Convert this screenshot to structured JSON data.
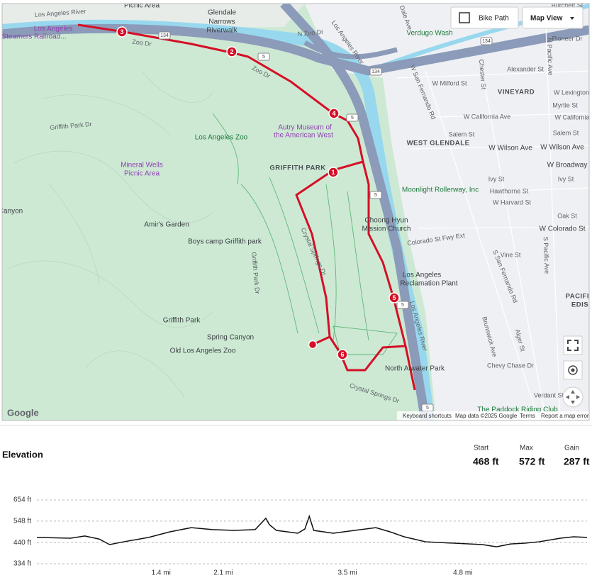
{
  "map": {
    "labels": [
      "Los Angeles River",
      "Los Angeles",
      "Steamers Railroad...",
      "Picnic Area",
      "Glendale",
      "Narrows",
      "Riverwalk",
      "Zoo Dr",
      "Zoo Dr",
      "N Zoo Dr",
      "Griffith Park Dr",
      "Los Angeles Zoo",
      "Autry Museum of",
      "the American West",
      "GRIFFITH PARK",
      "Mineral Wells",
      "Picnic Area",
      "Canyon",
      "Amir's Garden",
      "Boys camp Griffith park",
      "Crystal Springs Dr",
      "Griffith Park Dr",
      "Griffith Park",
      "Spring Canyon",
      "Old Los Angeles Zoo",
      "Crystal Springs Dr",
      "North Atwater Park",
      "The Paddock Riding Club",
      "Los Angeles",
      "Reclamation Plant",
      "Choong Hyun",
      "Mission Church",
      "Colorado St Fwy Ext",
      "Moonlight Rollerway, Inc",
      "WEST GLENDALE",
      "VINEYARD",
      "W Wilson Ave",
      "W Wilson Ave",
      "W Broadway",
      "Ivy St",
      "Ivy St",
      "Hawthorne St",
      "W Harvard St",
      "Oak St",
      "W Colorado St",
      "Vine St",
      "Alexander St",
      "W Milford St",
      "W California Ave",
      "Salem St",
      "Salem St",
      "Myrtle St",
      "W Lexington",
      "W California",
      "Chevy Chase Dr",
      "Verdant St",
      "Pioneer Dr",
      "Burchett St",
      "Verdugo Wash",
      "Los Angeles River",
      "Los Angeles River",
      "W San Fernando Rd",
      "S San Fernando Rd",
      "Brunswick Ave",
      "Alger St",
      "Chester St",
      "N Pacific Ave",
      "S Pacific Ave",
      "Dale Ave",
      "PACIFIC",
      "EDIS"
    ],
    "shields": [
      "134",
      "134",
      "134",
      "5",
      "5",
      "5",
      "5",
      "5"
    ],
    "route_markers": [
      "1",
      "2",
      "3",
      "4",
      "5",
      "6"
    ],
    "bike_path": "Bike Path",
    "map_view": "Map View",
    "logo": "Google",
    "footer": [
      "Keyboard shortcuts",
      "Map data ©2025 Google",
      "Terms",
      "Report a map error"
    ]
  },
  "elevation": {
    "title": "Elevation",
    "stats": [
      {
        "label": "Start",
        "value": "468 ft"
      },
      {
        "label": "Max",
        "value": "572 ft"
      },
      {
        "label": "Gain",
        "value": "287 ft"
      }
    ],
    "chart": {
      "type": "line",
      "x": [
        0.0,
        0.38,
        0.54,
        0.7,
        0.82,
        0.98,
        1.26,
        1.5,
        1.74,
        1.98,
        2.22,
        2.46,
        2.58,
        2.62,
        2.7,
        2.94,
        3.02,
        3.07,
        3.12,
        3.34,
        3.58,
        3.82,
        3.98,
        4.14,
        4.38,
        4.7,
        5.02,
        5.18,
        5.34,
        5.5,
        5.66,
        5.9,
        6.05,
        6.2
      ],
      "values": [
        466,
        462,
        473,
        458,
        430,
        444,
        466,
        494,
        515,
        505,
        501,
        505,
        562,
        530,
        501,
        487,
        508,
        572,
        501,
        487,
        501,
        515,
        494,
        469,
        444,
        437,
        430,
        419,
        433,
        437,
        444,
        462,
        469,
        466
      ],
      "color": "#111111",
      "xlim": [
        0,
        6.2
      ],
      "ylim": [
        334,
        654
      ],
      "yticks": [
        {
          "value": 654,
          "label": "654 ft"
        },
        {
          "value": 548,
          "label": "548 ft"
        },
        {
          "value": 440,
          "label": "440 ft"
        },
        {
          "value": 334,
          "label": "334 ft"
        }
      ],
      "xticks": [
        {
          "value": 1.4,
          "label": "1.4 mi"
        },
        {
          "value": 2.1,
          "label": "2.1 mi"
        },
        {
          "value": 3.5,
          "label": "3.5 mi"
        },
        {
          "value": 4.8,
          "label": "4.8 mi"
        }
      ],
      "grid": true
    }
  }
}
